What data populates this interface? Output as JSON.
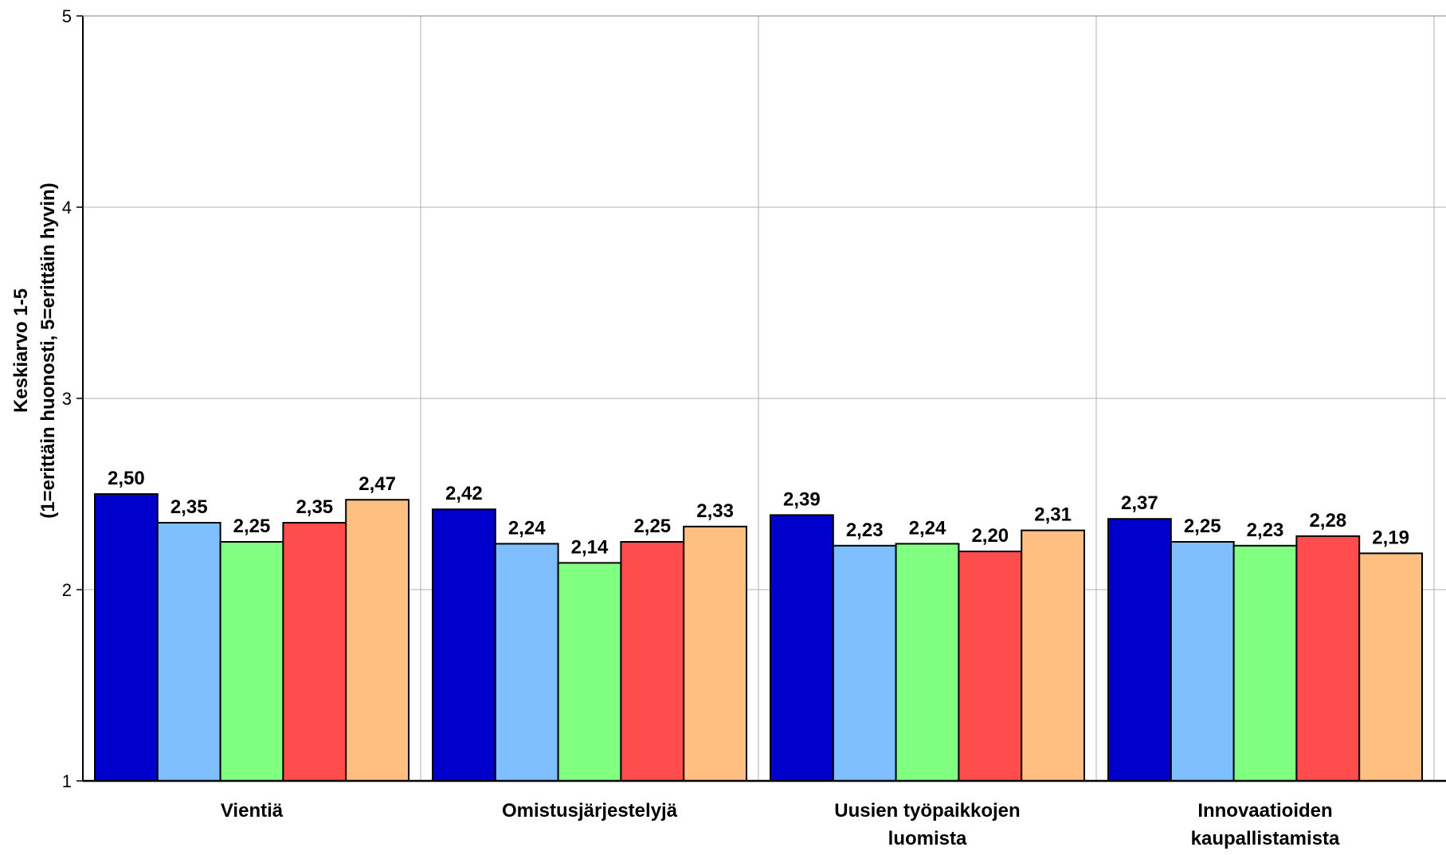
{
  "chart_data": {
    "type": "bar",
    "title": "",
    "xlabel": "",
    "ylabel": [
      "Keskiarvo 1-5",
      "(1=erittäin huonosti, 5=erittäin hyvin)"
    ],
    "ylim": [
      1,
      5
    ],
    "yticks": [
      "1",
      "2",
      "3",
      "4",
      "5"
    ],
    "grid": true,
    "legend": "none",
    "categories": [
      [
        "Vientiä"
      ],
      [
        "Omistusjärjestelyjä"
      ],
      [
        "Uusien työpaikkojen",
        "luomista"
      ],
      [
        "Innovaatioiden",
        "kaupallistamista"
      ]
    ],
    "series_colors": [
      "#0000CC",
      "#80BFFF",
      "#80FF80",
      "#FF4D4D",
      "#FFBF80"
    ],
    "series": [
      {
        "values": [
          2.5,
          2.42,
          2.39,
          2.37
        ],
        "labels": [
          "2,50",
          "2,42",
          "2,39",
          "2,37"
        ]
      },
      {
        "values": [
          2.35,
          2.24,
          2.23,
          2.25
        ],
        "labels": [
          "2,35",
          "2,24",
          "2,23",
          "2,25"
        ]
      },
      {
        "values": [
          2.25,
          2.14,
          2.24,
          2.23
        ],
        "labels": [
          "2,25",
          "2,14",
          "2,24",
          "2,23"
        ]
      },
      {
        "values": [
          2.35,
          2.25,
          2.2,
          2.28
        ],
        "labels": [
          "2,35",
          "2,25",
          "2,20",
          "2,28"
        ]
      },
      {
        "values": [
          2.47,
          2.33,
          2.31,
          2.19
        ],
        "labels": [
          "2,47",
          "2,33",
          "2,31",
          "2,19"
        ]
      }
    ]
  }
}
